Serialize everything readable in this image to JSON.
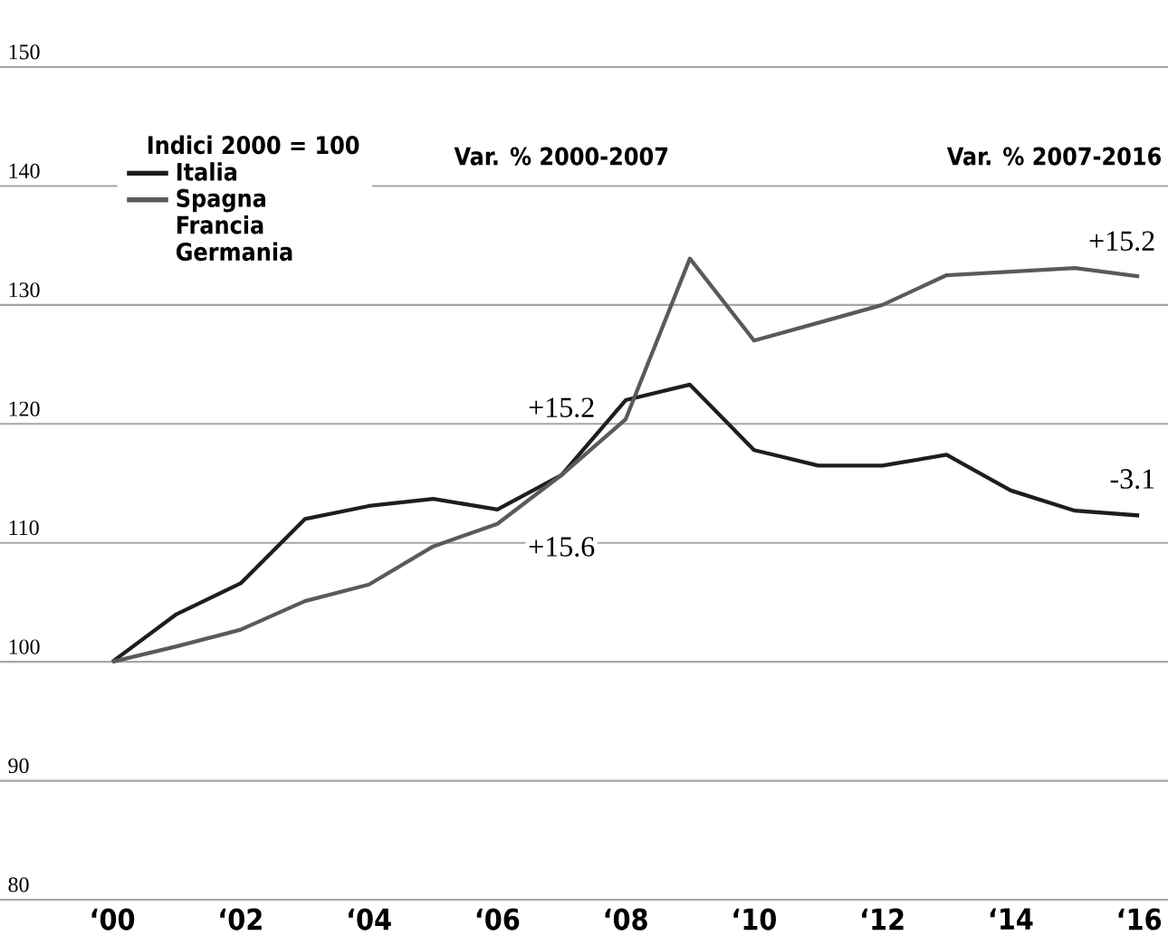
{
  "chart_data": {
    "type": "line",
    "legend_title": "Indici 2000 = 100",
    "legend": "top left",
    "grid": "y",
    "categories": [
      "‘00",
      null,
      "‘02",
      null,
      "‘04",
      null,
      "‘06",
      null,
      "‘08",
      null,
      "‘10",
      null,
      "‘12",
      null,
      "‘14",
      null,
      "‘16"
    ],
    "series": [
      {
        "name": "Italia",
        "color": "#1e1e1e",
        "values": [
          100,
          104,
          106.6,
          112,
          113.1,
          113.7,
          112.8,
          115.7,
          122,
          123.3,
          117.8,
          116.5,
          116.5,
          117.4,
          114.4,
          112.7,
          112.3
        ]
      },
      {
        "name": "Spagna",
        "color": "#5a5a5a",
        "values": [
          100,
          101.3,
          102.7,
          105.1,
          106.5,
          109.7,
          111.6,
          115.7,
          120.4,
          133.9,
          127,
          128.5,
          130,
          132.5,
          132.8,
          133.1,
          132.4
        ]
      }
    ],
    "ylim": [
      80,
      150
    ],
    "yticks": [
      80,
      90,
      100,
      110,
      120,
      130,
      140,
      150
    ],
    "annotations": [
      "Var. % 2000-2007",
      "Var. % 2007-2016",
      "Francia",
      "Germania",
      "+15.2",
      "+15.6",
      "+15.2",
      "-3.1"
    ]
  }
}
